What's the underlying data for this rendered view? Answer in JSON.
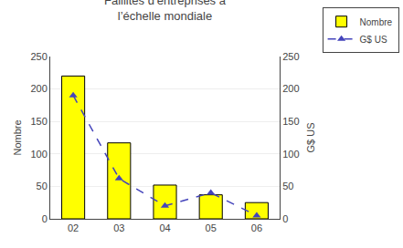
{
  "chart_data": {
    "type": "bar",
    "title": "Faillites d’entreprises à\nl’échelle mondiale",
    "categories": [
      "02",
      "03",
      "04",
      "05",
      "06"
    ],
    "series": [
      {
        "name": "Nombre",
        "type": "bar",
        "color": "#FFFF00",
        "values": [
          220,
          117,
          52,
          37,
          25
        ]
      },
      {
        "name": "G$ US",
        "type": "line",
        "axis": "y2",
        "color": "#4444BB",
        "marker": "triangle-up",
        "line_style": "dashed",
        "values": [
          190,
          62,
          20,
          40,
          5
        ]
      }
    ],
    "ylabel": "Nombre",
    "y2label": "G$ US",
    "ylim": [
      0,
      250
    ],
    "yticks": [
      0,
      50,
      100,
      150,
      200,
      250
    ],
    "y2lim": [
      0,
      250
    ],
    "y2ticks": [
      0,
      50,
      100,
      150,
      200,
      250
    ],
    "grid": true,
    "legend": "upper right"
  }
}
